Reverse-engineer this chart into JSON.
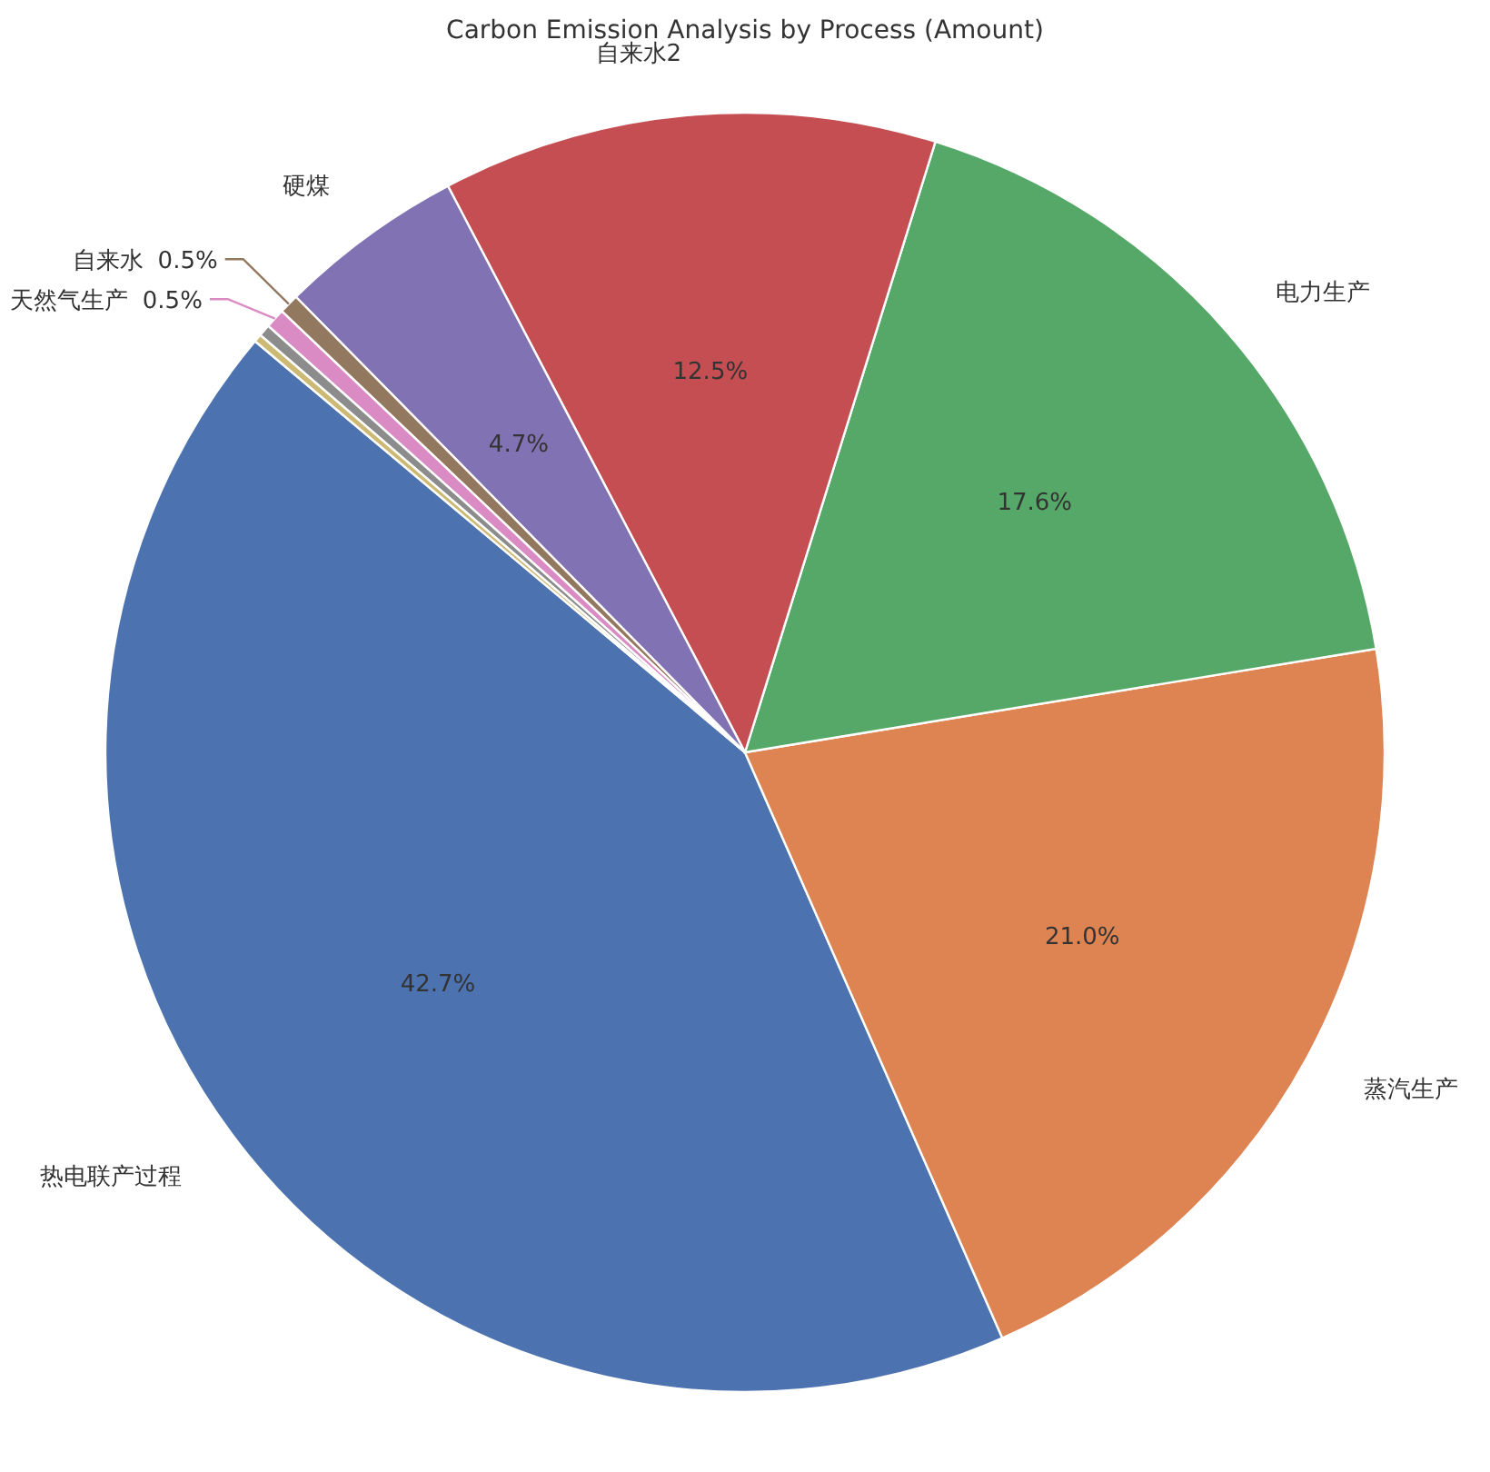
{
  "chart_data": {
    "type": "pie",
    "title": "Carbon Emission Analysis by Process (Amount)",
    "categories": [
      "热电联产过程",
      "蒸汽生产",
      "电力生产",
      "自来水2",
      "硬煤",
      "自来水",
      "天然气生产",
      null,
      null
    ],
    "values": [
      42.7,
      21.0,
      17.6,
      12.5,
      4.7,
      0.5,
      0.5,
      0.3,
      0.2
    ],
    "value_labels": [
      "42.7%",
      "21.0%",
      "17.6%",
      "12.5%",
      "4.7%",
      "0.5%",
      "0.5%",
      null,
      null
    ],
    "colors": [
      "#4c72b0",
      "#dd8452",
      "#55a868",
      "#c44e52",
      "#8172b3",
      "#937860",
      "#da8bc3",
      "#8c8c8c",
      "#ccb974"
    ],
    "legend": false
  }
}
